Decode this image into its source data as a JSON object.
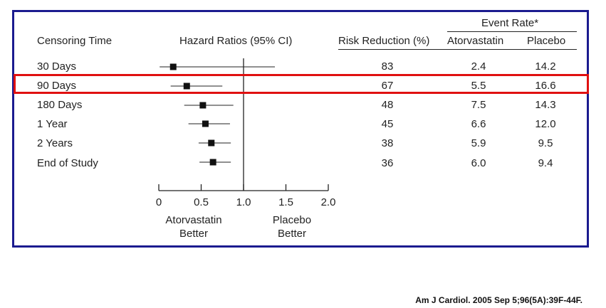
{
  "chart_data": {
    "type": "forest",
    "columns": {
      "censoring_time": "Censoring Time",
      "hazard_ratios": "Hazard Ratios (95% CI)",
      "risk_reduction": "Risk Reduction (%)",
      "event_rate_group": "Event Rate*",
      "atorvastatin": "Atorvastatin",
      "placebo": "Placebo"
    },
    "rows": [
      {
        "label": "30 Days",
        "hr": 0.17,
        "ci_low": 0.01,
        "ci_high": 1.37,
        "risk_reduction": "83",
        "atorvastatin": "2.4",
        "placebo": "14.2"
      },
      {
        "label": "90 Days",
        "hr": 0.33,
        "ci_low": 0.14,
        "ci_high": 0.75,
        "risk_reduction": "67",
        "atorvastatin": "5.5",
        "placebo": "16.6"
      },
      {
        "label": "180 Days",
        "hr": 0.52,
        "ci_low": 0.3,
        "ci_high": 0.88,
        "risk_reduction": "48",
        "atorvastatin": "7.5",
        "placebo": "14.3"
      },
      {
        "label": "1 Year",
        "hr": 0.55,
        "ci_low": 0.35,
        "ci_high": 0.84,
        "risk_reduction": "45",
        "atorvastatin": "6.6",
        "placebo": "12.0"
      },
      {
        "label": "2 Years",
        "hr": 0.62,
        "ci_low": 0.47,
        "ci_high": 0.85,
        "risk_reduction": "38",
        "atorvastatin": "5.9",
        "placebo": "9.5"
      },
      {
        "label": "End of Study",
        "hr": 0.64,
        "ci_low": 0.48,
        "ci_high": 0.85,
        "risk_reduction": "36",
        "atorvastatin": "6.0",
        "placebo": "9.4"
      }
    ],
    "x_ticks": [
      "0",
      "0.5",
      "1.0",
      "1.5",
      "2.0"
    ],
    "x_tick_values": [
      0,
      0.5,
      1.0,
      1.5,
      2.0
    ],
    "xlim": [
      0,
      2.0
    ],
    "reference_line": 1.0,
    "left_caption": [
      "Atorvastatin",
      "Better"
    ],
    "right_caption": [
      "Placebo",
      "Better"
    ],
    "highlighted_row": "90 Days"
  },
  "citation": "Am J Cardiol. 2005 Sep 5;96(5A):39F-44F.",
  "colors": {
    "frame": "#1b1b8f",
    "highlight": "#e01010",
    "ink": "#222222"
  }
}
